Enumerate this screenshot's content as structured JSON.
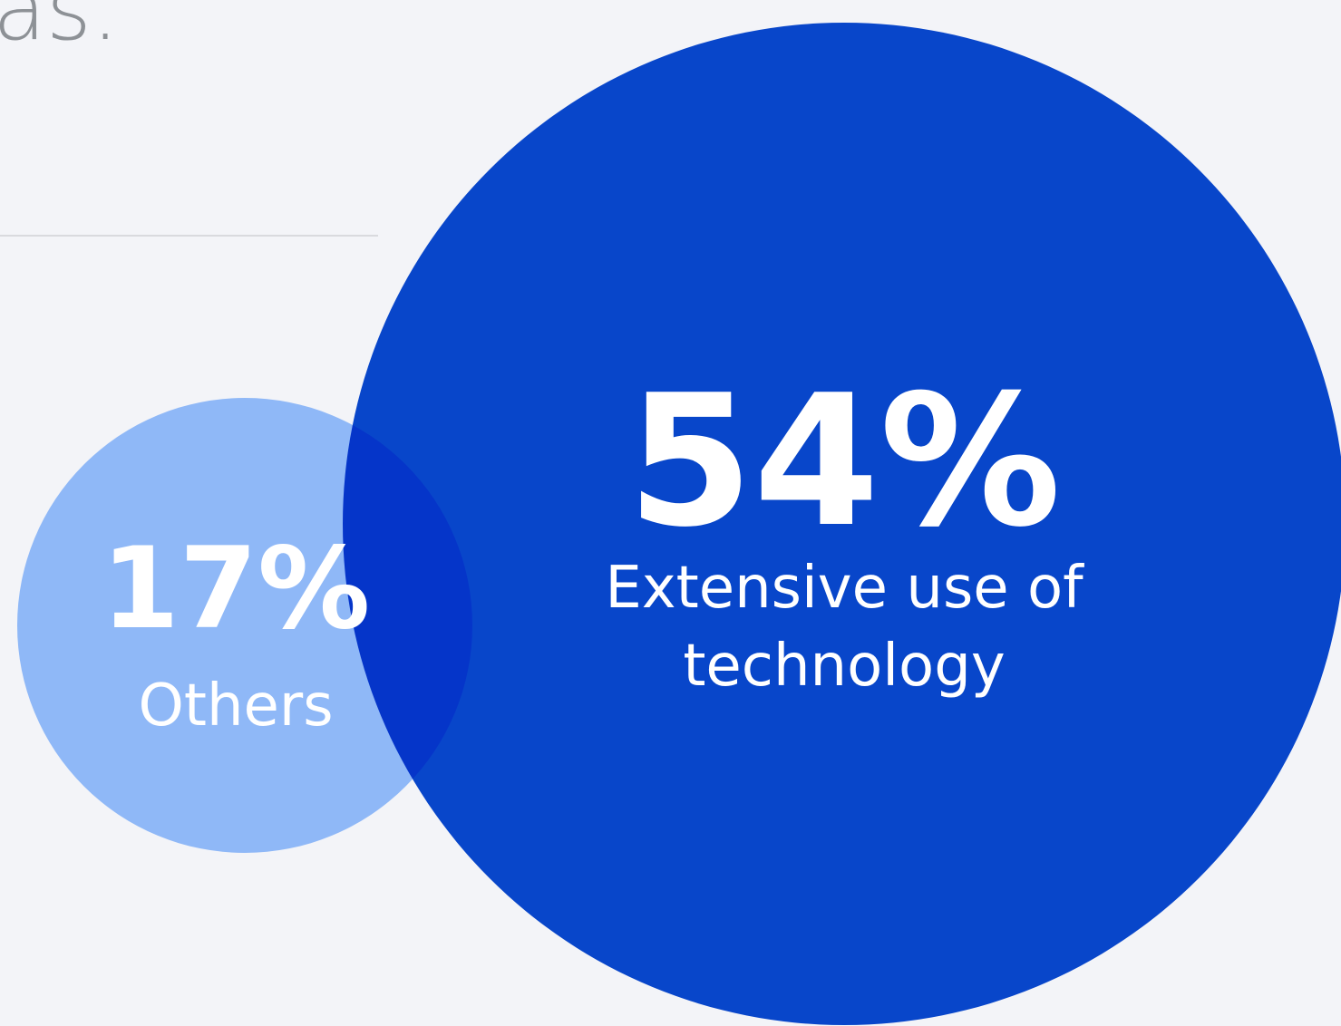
{
  "heading": {
    "fragment": "as."
  },
  "chart_data": {
    "type": "bubble",
    "series": [
      {
        "value": 17,
        "value_label": "17%",
        "label_lines": [
          "Others"
        ],
        "color": "#8fb8f7"
      },
      {
        "value": 54,
        "value_label": "54%",
        "label_lines": [
          "Extensive use of",
          "technology"
        ],
        "color": "#0043ce"
      }
    ]
  }
}
